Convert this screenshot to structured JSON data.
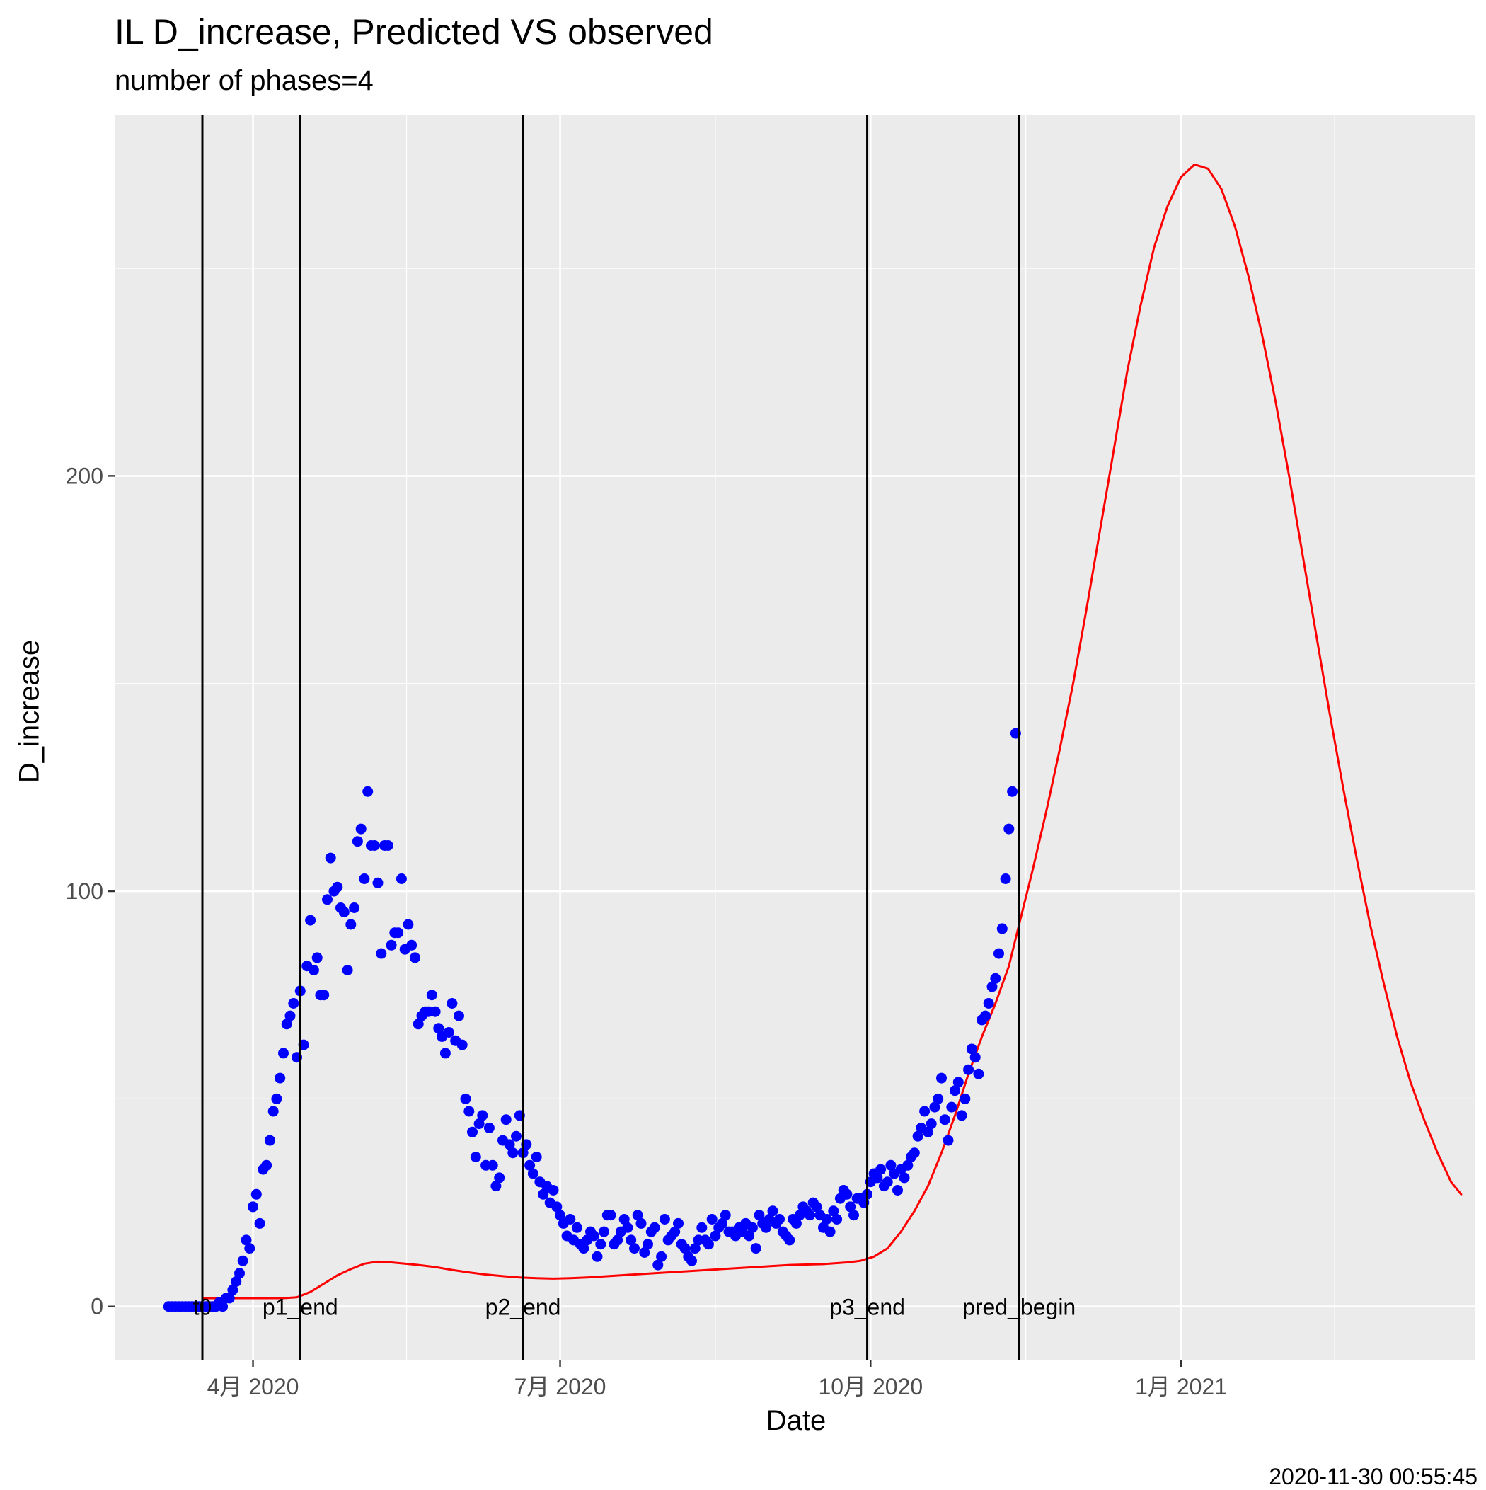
{
  "chart_data": {
    "type": "scatter",
    "title": "IL D_increase, Predicted VS observed",
    "subtitle": "number of phases=4",
    "xlabel": "Date",
    "ylabel": "D_increase",
    "caption": "2020-11-30 00:55:45",
    "x_unit": "days since 2020-03-01",
    "xlim": [
      -10,
      393
    ],
    "ylim": [
      -13,
      287
    ],
    "y_ticks": [
      0,
      100,
      200
    ],
    "y_tick_labels": [
      "0",
      "100",
      "200"
    ],
    "x_ticks": [
      31,
      122,
      214,
      306
    ],
    "x_tick_labels": [
      "4月 2020",
      "7月 2020",
      "10月 2020",
      "1月 2021"
    ],
    "phase_lines": [
      {
        "label": "t0",
        "x": 16
      },
      {
        "label": "p1_end",
        "x": 45
      },
      {
        "label": "p2_end",
        "x": 111
      },
      {
        "label": "p3_end",
        "x": 213
      },
      {
        "label": "pred_begin",
        "x": 258
      }
    ],
    "series": [
      {
        "name": "observed",
        "color": "#0000ff",
        "points": [
          [
            6,
            0
          ],
          [
            7,
            0
          ],
          [
            8,
            0
          ],
          [
            9,
            0
          ],
          [
            10,
            0
          ],
          [
            11,
            0
          ],
          [
            12,
            0
          ],
          [
            13,
            0
          ],
          [
            14,
            0
          ],
          [
            15,
            0
          ],
          [
            16,
            0
          ],
          [
            17,
            0
          ],
          [
            18,
            0
          ],
          [
            19,
            0
          ],
          [
            20,
            0
          ],
          [
            21,
            1
          ],
          [
            22,
            0
          ],
          [
            23,
            2
          ],
          [
            24,
            2
          ],
          [
            25,
            4
          ],
          [
            26,
            6
          ],
          [
            27,
            8
          ],
          [
            28,
            11
          ],
          [
            29,
            16
          ],
          [
            30,
            14
          ],
          [
            31,
            24
          ],
          [
            32,
            27
          ],
          [
            33,
            20
          ],
          [
            34,
            33
          ],
          [
            35,
            34
          ],
          [
            36,
            40
          ],
          [
            37,
            47
          ],
          [
            38,
            50
          ],
          [
            39,
            55
          ],
          [
            40,
            61
          ],
          [
            41,
            68
          ],
          [
            42,
            70
          ],
          [
            43,
            73
          ],
          [
            44,
            60
          ],
          [
            45,
            76
          ],
          [
            46,
            63
          ],
          [
            47,
            82
          ],
          [
            48,
            93
          ],
          [
            49,
            81
          ],
          [
            50,
            84
          ],
          [
            51,
            75
          ],
          [
            52,
            75
          ],
          [
            53,
            98
          ],
          [
            54,
            108
          ],
          [
            55,
            100
          ],
          [
            56,
            101
          ],
          [
            57,
            96
          ],
          [
            58,
            95
          ],
          [
            59,
            81
          ],
          [
            60,
            92
          ],
          [
            61,
            96
          ],
          [
            62,
            112
          ],
          [
            63,
            115
          ],
          [
            64,
            103
          ],
          [
            65,
            124
          ],
          [
            66,
            111
          ],
          [
            67,
            111
          ],
          [
            68,
            102
          ],
          [
            69,
            85
          ],
          [
            70,
            111
          ],
          [
            71,
            111
          ],
          [
            72,
            87
          ],
          [
            73,
            90
          ],
          [
            74,
            90
          ],
          [
            75,
            103
          ],
          [
            76,
            86
          ],
          [
            77,
            92
          ],
          [
            78,
            87
          ],
          [
            79,
            84
          ],
          [
            80,
            68
          ],
          [
            81,
            70
          ],
          [
            82,
            71
          ],
          [
            83,
            71
          ],
          [
            84,
            75
          ],
          [
            85,
            71
          ],
          [
            86,
            67
          ],
          [
            87,
            65
          ],
          [
            88,
            61
          ],
          [
            89,
            66
          ],
          [
            90,
            73
          ],
          [
            91,
            64
          ],
          [
            92,
            70
          ],
          [
            93,
            63
          ],
          [
            94,
            50
          ],
          [
            95,
            47
          ],
          [
            96,
            42
          ],
          [
            97,
            36
          ],
          [
            98,
            44
          ],
          [
            99,
            46
          ],
          [
            100,
            34
          ],
          [
            101,
            43
          ],
          [
            102,
            34
          ],
          [
            103,
            29
          ],
          [
            104,
            31
          ],
          [
            105,
            40
          ],
          [
            106,
            45
          ],
          [
            107,
            39
          ],
          [
            108,
            37
          ],
          [
            109,
            41
          ],
          [
            110,
            46
          ],
          [
            111,
            37
          ],
          [
            112,
            39
          ],
          [
            113,
            34
          ],
          [
            114,
            32
          ],
          [
            115,
            36
          ],
          [
            116,
            30
          ],
          [
            117,
            27
          ],
          [
            118,
            29
          ],
          [
            119,
            25
          ],
          [
            120,
            28
          ],
          [
            121,
            24
          ],
          [
            122,
            22
          ],
          [
            123,
            20
          ],
          [
            124,
            17
          ],
          [
            125,
            21
          ],
          [
            126,
            16
          ],
          [
            127,
            19
          ],
          [
            128,
            15
          ],
          [
            129,
            14
          ],
          [
            130,
            16
          ],
          [
            131,
            18
          ],
          [
            132,
            17
          ],
          [
            133,
            12
          ],
          [
            134,
            15
          ],
          [
            135,
            18
          ],
          [
            136,
            22
          ],
          [
            137,
            22
          ],
          [
            138,
            15
          ],
          [
            139,
            16
          ],
          [
            140,
            18
          ],
          [
            141,
            21
          ],
          [
            142,
            19
          ],
          [
            143,
            16
          ],
          [
            144,
            14
          ],
          [
            145,
            22
          ],
          [
            146,
            20
          ],
          [
            147,
            13
          ],
          [
            148,
            15
          ],
          [
            149,
            18
          ],
          [
            150,
            19
          ],
          [
            151,
            10
          ],
          [
            152,
            12
          ],
          [
            153,
            21
          ],
          [
            154,
            16
          ],
          [
            155,
            17
          ],
          [
            156,
            18
          ],
          [
            157,
            20
          ],
          [
            158,
            15
          ],
          [
            159,
            14
          ],
          [
            160,
            12
          ],
          [
            161,
            11
          ],
          [
            162,
            14
          ],
          [
            163,
            16
          ],
          [
            164,
            19
          ],
          [
            165,
            16
          ],
          [
            166,
            15
          ],
          [
            167,
            21
          ],
          [
            168,
            17
          ],
          [
            169,
            19
          ],
          [
            170,
            20
          ],
          [
            171,
            22
          ],
          [
            172,
            18
          ],
          [
            173,
            18
          ],
          [
            174,
            17
          ],
          [
            175,
            19
          ],
          [
            176,
            18
          ],
          [
            177,
            20
          ],
          [
            178,
            17
          ],
          [
            179,
            19
          ],
          [
            180,
            14
          ],
          [
            181,
            22
          ],
          [
            182,
            20
          ],
          [
            183,
            19
          ],
          [
            184,
            21
          ],
          [
            185,
            23
          ],
          [
            186,
            20
          ],
          [
            187,
            21
          ],
          [
            188,
            18
          ],
          [
            189,
            17
          ],
          [
            190,
            16
          ],
          [
            191,
            21
          ],
          [
            192,
            20
          ],
          [
            193,
            22
          ],
          [
            194,
            24
          ],
          [
            195,
            23
          ],
          [
            196,
            22
          ],
          [
            197,
            25
          ],
          [
            198,
            24
          ],
          [
            199,
            22
          ],
          [
            200,
            19
          ],
          [
            201,
            21
          ],
          [
            202,
            18
          ],
          [
            203,
            23
          ],
          [
            204,
            21
          ],
          [
            205,
            26
          ],
          [
            206,
            28
          ],
          [
            207,
            27
          ],
          [
            208,
            24
          ],
          [
            209,
            22
          ],
          [
            210,
            26
          ],
          [
            211,
            26
          ],
          [
            212,
            25
          ],
          [
            213,
            27
          ],
          [
            214,
            30
          ],
          [
            215,
            32
          ],
          [
            216,
            31
          ],
          [
            217,
            33
          ],
          [
            218,
            29
          ],
          [
            219,
            30
          ],
          [
            220,
            34
          ],
          [
            221,
            32
          ],
          [
            222,
            28
          ],
          [
            223,
            33
          ],
          [
            224,
            31
          ],
          [
            225,
            34
          ],
          [
            226,
            36
          ],
          [
            227,
            37
          ],
          [
            228,
            41
          ],
          [
            229,
            43
          ],
          [
            230,
            47
          ],
          [
            231,
            42
          ],
          [
            232,
            44
          ],
          [
            233,
            48
          ],
          [
            234,
            50
          ],
          [
            235,
            55
          ],
          [
            236,
            45
          ],
          [
            237,
            40
          ],
          [
            238,
            48
          ],
          [
            239,
            52
          ],
          [
            240,
            54
          ],
          [
            241,
            46
          ],
          [
            242,
            50
          ],
          [
            243,
            57
          ],
          [
            244,
            62
          ],
          [
            245,
            60
          ],
          [
            246,
            56
          ],
          [
            247,
            69
          ],
          [
            248,
            70
          ],
          [
            249,
            73
          ],
          [
            250,
            77
          ],
          [
            251,
            79
          ],
          [
            252,
            85
          ],
          [
            253,
            91
          ],
          [
            254,
            103
          ],
          [
            255,
            115
          ],
          [
            256,
            124
          ],
          [
            257,
            138
          ]
        ]
      },
      {
        "name": "predicted",
        "color": "#ff0000",
        "points": [
          [
            16,
            2
          ],
          [
            22,
            2
          ],
          [
            28,
            2
          ],
          [
            34,
            2
          ],
          [
            40,
            2
          ],
          [
            44,
            2.2
          ],
          [
            48,
            3.5
          ],
          [
            52,
            5.5
          ],
          [
            56,
            7.5
          ],
          [
            60,
            9
          ],
          [
            64,
            10.3
          ],
          [
            68,
            10.8
          ],
          [
            72,
            10.6
          ],
          [
            76,
            10.3
          ],
          [
            80,
            10
          ],
          [
            85,
            9.5
          ],
          [
            90,
            8.8
          ],
          [
            95,
            8.2
          ],
          [
            100,
            7.7
          ],
          [
            105,
            7.3
          ],
          [
            110,
            7
          ],
          [
            115,
            6.8
          ],
          [
            120,
            6.7
          ],
          [
            125,
            6.8
          ],
          [
            130,
            7
          ],
          [
            140,
            7.5
          ],
          [
            150,
            8
          ],
          [
            160,
            8.5
          ],
          [
            170,
            9
          ],
          [
            180,
            9.5
          ],
          [
            190,
            10
          ],
          [
            200,
            10.2
          ],
          [
            207,
            10.6
          ],
          [
            211,
            11
          ],
          [
            215,
            12
          ],
          [
            219,
            14
          ],
          [
            223,
            18
          ],
          [
            227,
            23
          ],
          [
            231,
            29
          ],
          [
            235,
            37
          ],
          [
            239,
            46
          ],
          [
            243,
            56
          ],
          [
            247,
            65
          ],
          [
            251,
            73
          ],
          [
            255,
            82
          ],
          [
            258,
            92
          ],
          [
            262,
            105
          ],
          [
            266,
            119
          ],
          [
            270,
            134
          ],
          [
            274,
            150
          ],
          [
            278,
            168
          ],
          [
            282,
            187
          ],
          [
            286,
            206
          ],
          [
            290,
            225
          ],
          [
            294,
            241
          ],
          [
            298,
            255
          ],
          [
            302,
            265
          ],
          [
            306,
            272
          ],
          [
            310,
            275
          ],
          [
            314,
            274
          ],
          [
            318,
            269
          ],
          [
            322,
            260
          ],
          [
            326,
            248
          ],
          [
            330,
            234
          ],
          [
            334,
            218
          ],
          [
            338,
            200
          ],
          [
            342,
            181
          ],
          [
            346,
            162
          ],
          [
            350,
            143
          ],
          [
            354,
            125
          ],
          [
            358,
            108
          ],
          [
            362,
            92
          ],
          [
            366,
            78
          ],
          [
            370,
            65
          ],
          [
            374,
            54
          ],
          [
            378,
            45
          ],
          [
            382,
            37
          ],
          [
            386,
            30
          ],
          [
            389,
            27
          ]
        ]
      }
    ]
  }
}
